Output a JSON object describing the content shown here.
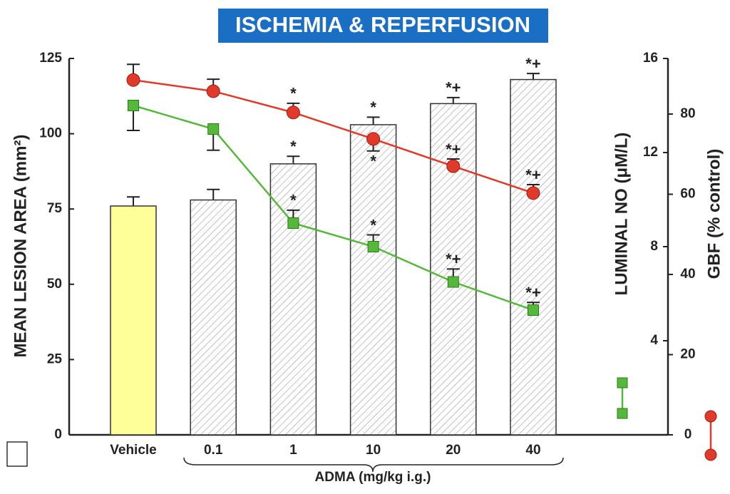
{
  "chart_data": {
    "type": "bar",
    "title": "ISCHEMIA & REPERFUSION",
    "ylabel": "MEAN LESION AREA (mm²)",
    "y2label": "LUMINAL NO (μM/L)",
    "y3label": "GBF (% control)",
    "xlabel": "ADMA (mg/kg i.g.)",
    "categories": [
      "Vehicle",
      "0.1",
      "1",
      "10",
      "20",
      "40"
    ],
    "values": [
      76,
      78,
      90,
      103,
      110,
      118
    ],
    "errors": [
      3,
      3.5,
      2.5,
      2.5,
      2,
      2
    ],
    "colors": [
      "#ffff99",
      "#ffffff",
      "#ffffff",
      "#ffffff",
      "#ffffff",
      "#ffffff"
    ],
    "hatched": [
      false,
      true,
      true,
      true,
      true,
      true
    ],
    "significance": [
      null,
      null,
      "*",
      "*",
      "*+",
      "*+"
    ],
    "ylim": [
      0,
      125
    ],
    "yticks": [
      0,
      25,
      50,
      75,
      100,
      125
    ],
    "y2lim": [
      0,
      16
    ],
    "y2ticks": [
      4,
      8,
      12,
      16
    ],
    "y3lim": [
      0,
      93.87
    ],
    "y3ticks": [
      0,
      20,
      40,
      60,
      80
    ],
    "series": [
      {
        "color": "#55b83a",
        "marker": "square",
        "axis": "y2",
        "values": [
          14.0,
          13.0,
          9.0,
          8.0,
          6.5,
          5.3
        ],
        "errors": [
          1.06,
          0.9,
          0.55,
          0.5,
          0.55,
          0.33
        ],
        "significance": [
          null,
          null,
          "*",
          "*",
          "*+",
          "*+"
        ]
      },
      {
        "color": "#e03a2a",
        "marker": "circle",
        "axis": "y3",
        "values": [
          88.5,
          85.7,
          80.4,
          73.8,
          67.0,
          60.3
        ],
        "errors": [
          3.9,
          3,
          2.3,
          3,
          1.8,
          2.1
        ],
        "significance": [
          null,
          null,
          "*",
          "*",
          "*+",
          "*+"
        ]
      }
    ]
  }
}
